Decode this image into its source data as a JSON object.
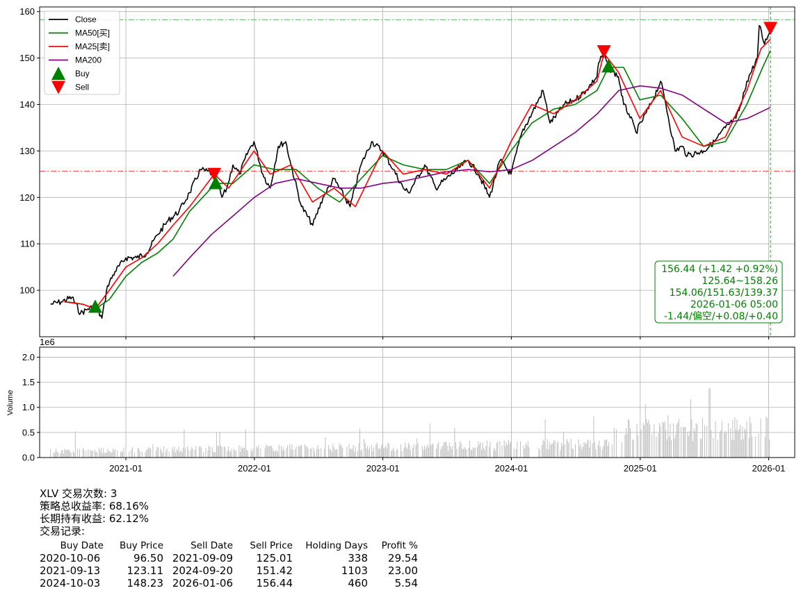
{
  "chart_data": {
    "type": "line",
    "price_panel": {
      "y_ticks": [
        100,
        110,
        120,
        130,
        140,
        150,
        160
      ],
      "ylim": [
        90,
        161
      ],
      "grid": true,
      "horizontal_lines": [
        {
          "value": 158.26,
          "color": "#2ca02c",
          "style": "dashdot"
        },
        {
          "value": 125.64,
          "color": "#ff0000",
          "style": "dashdot"
        }
      ],
      "vertical_lines": [
        {
          "date": "2026-01-06",
          "color": "#2ca02c",
          "style": "dashed"
        }
      ],
      "legend": {
        "placement": "top-left",
        "entries": [
          {
            "label": "Close",
            "color": "#000000",
            "kind": "line"
          },
          {
            "label": "MA50[买]",
            "color": "#008000",
            "kind": "line"
          },
          {
            "label": "MA25[卖]",
            "color": "#ff0000",
            "kind": "line"
          },
          {
            "label": "MA200",
            "color": "#800080",
            "kind": "line"
          },
          {
            "label": "Buy",
            "color": "#008000",
            "kind": "marker-up"
          },
          {
            "label": "Sell",
            "color": "#ff0000",
            "kind": "marker-down"
          }
        ]
      },
      "series": [
        {
          "name": "Close",
          "color": "#000000",
          "x": [
            "2020-06-01",
            "2020-07-01",
            "2020-08-01",
            "2020-08-25",
            "2020-09-15",
            "2020-10-06",
            "2020-10-25",
            "2020-11-10",
            "2020-12-01",
            "2021-01-01",
            "2021-02-01",
            "2021-03-01",
            "2021-04-01",
            "2021-05-01",
            "2021-06-01",
            "2021-07-01",
            "2021-08-01",
            "2021-09-09",
            "2021-10-01",
            "2021-10-15",
            "2021-11-01",
            "2021-11-20",
            "2021-12-15",
            "2021-12-31",
            "2022-01-25",
            "2022-02-15",
            "2022-03-10",
            "2022-03-31",
            "2022-04-15",
            "2022-05-15",
            "2022-06-16",
            "2022-07-15",
            "2022-08-15",
            "2022-09-30",
            "2022-10-31",
            "2022-11-30",
            "2022-12-31",
            "2023-01-31",
            "2023-02-28",
            "2023-03-15",
            "2023-04-30",
            "2023-05-31",
            "2023-06-30",
            "2023-07-31",
            "2023-08-31",
            "2023-09-30",
            "2023-10-31",
            "2023-11-30",
            "2023-12-31",
            "2024-01-31",
            "2024-02-28",
            "2024-03-31",
            "2024-04-20",
            "2024-05-31",
            "2024-06-30",
            "2024-07-31",
            "2024-08-31",
            "2024-09-05",
            "2024-09-20",
            "2024-10-03",
            "2024-10-31",
            "2024-11-15",
            "2024-11-30",
            "2024-12-20",
            "2025-01-31",
            "2025-02-28",
            "2025-03-15",
            "2025-04-10",
            "2025-04-30",
            "2025-05-15",
            "2025-06-30",
            "2025-07-31",
            "2025-08-31",
            "2025-09-30",
            "2025-10-15",
            "2025-10-31",
            "2025-11-30",
            "2025-12-05",
            "2025-12-20",
            "2026-01-06"
          ],
          "values": [
            97,
            97.5,
            98.5,
            95,
            96,
            96.5,
            94,
            101,
            104,
            107,
            107,
            108,
            112,
            115,
            117,
            121,
            126,
            125,
            120,
            122,
            127,
            125,
            130,
            132,
            125,
            122,
            131,
            132,
            127,
            118,
            114,
            120,
            124,
            118,
            127,
            132,
            130,
            126,
            122,
            121,
            127,
            122,
            124,
            126,
            128,
            125,
            120,
            128,
            125,
            134,
            138,
            143,
            136,
            140,
            141,
            143,
            146,
            149,
            151,
            148,
            146,
            140,
            138,
            134,
            140,
            145,
            140,
            130,
            131,
            129,
            130,
            132,
            135,
            137,
            140,
            145,
            150,
            157,
            153,
            156.44
          ]
        },
        {
          "name": "MA50[买]",
          "color": "#008000",
          "x": [
            "2020-07-20",
            "2020-09-01",
            "2020-10-06",
            "2020-11-15",
            "2021-01-01",
            "2021-02-15",
            "2021-04-01",
            "2021-05-15",
            "2021-07-01",
            "2021-09-13",
            "2021-11-01",
            "2021-12-31",
            "2022-02-28",
            "2022-04-30",
            "2022-06-30",
            "2022-08-31",
            "2022-10-31",
            "2022-12-31",
            "2023-02-28",
            "2023-04-30",
            "2023-06-30",
            "2023-08-31",
            "2023-10-31",
            "2023-12-31",
            "2024-02-28",
            "2024-04-30",
            "2024-06-30",
            "2024-08-31",
            "2024-10-03",
            "2024-11-15",
            "2024-12-31",
            "2025-02-28",
            "2025-04-30",
            "2025-06-30",
            "2025-08-31",
            "2025-09-15",
            "2025-10-31",
            "2025-12-15",
            "2026-01-06"
          ],
          "values": [
            97.5,
            97,
            96,
            98,
            103,
            106,
            108,
            111,
            117,
            123,
            123,
            127,
            126,
            126,
            122,
            119,
            124,
            129,
            127,
            126,
            126,
            128,
            123,
            130,
            136,
            139,
            140,
            143,
            148,
            148,
            141,
            142,
            137,
            131,
            132,
            134,
            140,
            148,
            151.63
          ]
        },
        {
          "name": "MA25[卖]",
          "color": "#ff0000",
          "x": [
            "2020-07-10",
            "2020-09-01",
            "2020-10-06",
            "2020-11-15",
            "2021-01-01",
            "2021-02-15",
            "2021-04-01",
            "2021-05-15",
            "2021-07-01",
            "2021-09-09",
            "2021-10-20",
            "2021-12-31",
            "2022-02-15",
            "2022-04-15",
            "2022-06-15",
            "2022-08-15",
            "2022-10-15",
            "2022-12-31",
            "2023-02-28",
            "2023-04-30",
            "2023-06-30",
            "2023-08-31",
            "2023-10-31",
            "2023-12-31",
            "2024-02-28",
            "2024-04-30",
            "2024-06-30",
            "2024-08-31",
            "2024-09-20",
            "2024-10-31",
            "2024-12-31",
            "2025-02-28",
            "2025-04-30",
            "2025-06-30",
            "2025-08-31",
            "2025-10-31",
            "2025-12-10",
            "2026-01-06"
          ],
          "values": [
            97.5,
            97,
            96,
            100,
            105,
            107,
            110,
            114,
            118,
            125,
            122,
            130,
            125,
            127,
            119,
            122,
            118,
            130,
            125,
            126,
            125,
            128,
            122,
            132,
            140,
            138,
            141,
            145,
            151,
            147,
            137,
            143,
            133,
            131,
            133,
            143,
            152,
            154.06
          ]
        },
        {
          "name": "MA200",
          "color": "#800080",
          "x": [
            "2021-05-15",
            "2021-07-01",
            "2021-09-01",
            "2021-11-01",
            "2022-01-01",
            "2022-03-01",
            "2022-05-01",
            "2022-07-01",
            "2022-09-01",
            "2022-11-01",
            "2023-01-01",
            "2023-03-01",
            "2023-05-01",
            "2023-07-01",
            "2023-09-01",
            "2023-11-01",
            "2024-01-01",
            "2024-03-01",
            "2024-05-01",
            "2024-07-01",
            "2024-09-01",
            "2024-11-01",
            "2025-01-01",
            "2025-03-01",
            "2025-05-01",
            "2025-07-01",
            "2025-09-01",
            "2025-11-01",
            "2026-01-06"
          ],
          "values": [
            103,
            107,
            112,
            116,
            120,
            123,
            124,
            123,
            122,
            122,
            123,
            123.5,
            124.5,
            125.5,
            126,
            125.5,
            126,
            128,
            131,
            134,
            138,
            143,
            144,
            143.5,
            142,
            139,
            136,
            137,
            139.37
          ]
        }
      ],
      "markers": [
        {
          "kind": "buy",
          "date": "2020-10-06",
          "value": 96.5
        },
        {
          "kind": "sell",
          "date": "2021-09-09",
          "value": 125.01
        },
        {
          "kind": "buy",
          "date": "2021-09-13",
          "value": 123.11
        },
        {
          "kind": "sell",
          "date": "2024-09-20",
          "value": 151.42
        },
        {
          "kind": "buy",
          "date": "2024-10-03",
          "value": 148.23
        },
        {
          "kind": "sell",
          "date": "2026-01-06",
          "value": 156.44
        }
      ],
      "info_box": [
        "156.44 (+1.42 +0.92%)",
        "125.64~158.26",
        "154.06/151.63/139.37",
        "2026-01-06 05:00",
        "-1.44/偏空/+0.08/+0.40"
      ]
    },
    "volume_panel": {
      "ylabel": "Volume",
      "multiplier_label": "1e6",
      "y_ticks": [
        "0.0",
        "0.5",
        "1.0",
        "1.5",
        "2.0"
      ],
      "ylim": [
        0,
        2.2
      ],
      "bar_color": "#bfbfbf",
      "grid": true,
      "date_range": [
        "2020-06-01",
        "2026-01-06"
      ]
    },
    "x_ticks": [
      "2021-01",
      "2022-01",
      "2023-01",
      "2024-01",
      "2025-01",
      "2026-01"
    ]
  },
  "stats": {
    "line1": "XLV 交易次数: 3",
    "line2": "策略总收益率: 68.16%",
    "line3": "长期持有收益: 62.12%",
    "line4": "交易记录:"
  },
  "trades": {
    "headers": [
      "Buy Date",
      "Buy Price",
      "Sell Date",
      "Sell Price",
      "Holding Days",
      "Profit %"
    ],
    "rows": [
      [
        "2020-10-06",
        "96.50",
        "2021-09-09",
        "125.01",
        "338",
        "29.54"
      ],
      [
        "2021-09-13",
        "123.11",
        "2024-09-20",
        "151.42",
        "1103",
        "23.00"
      ],
      [
        "2024-10-03",
        "148.23",
        "2026-01-06",
        "156.44",
        "460",
        "5.54"
      ]
    ]
  }
}
